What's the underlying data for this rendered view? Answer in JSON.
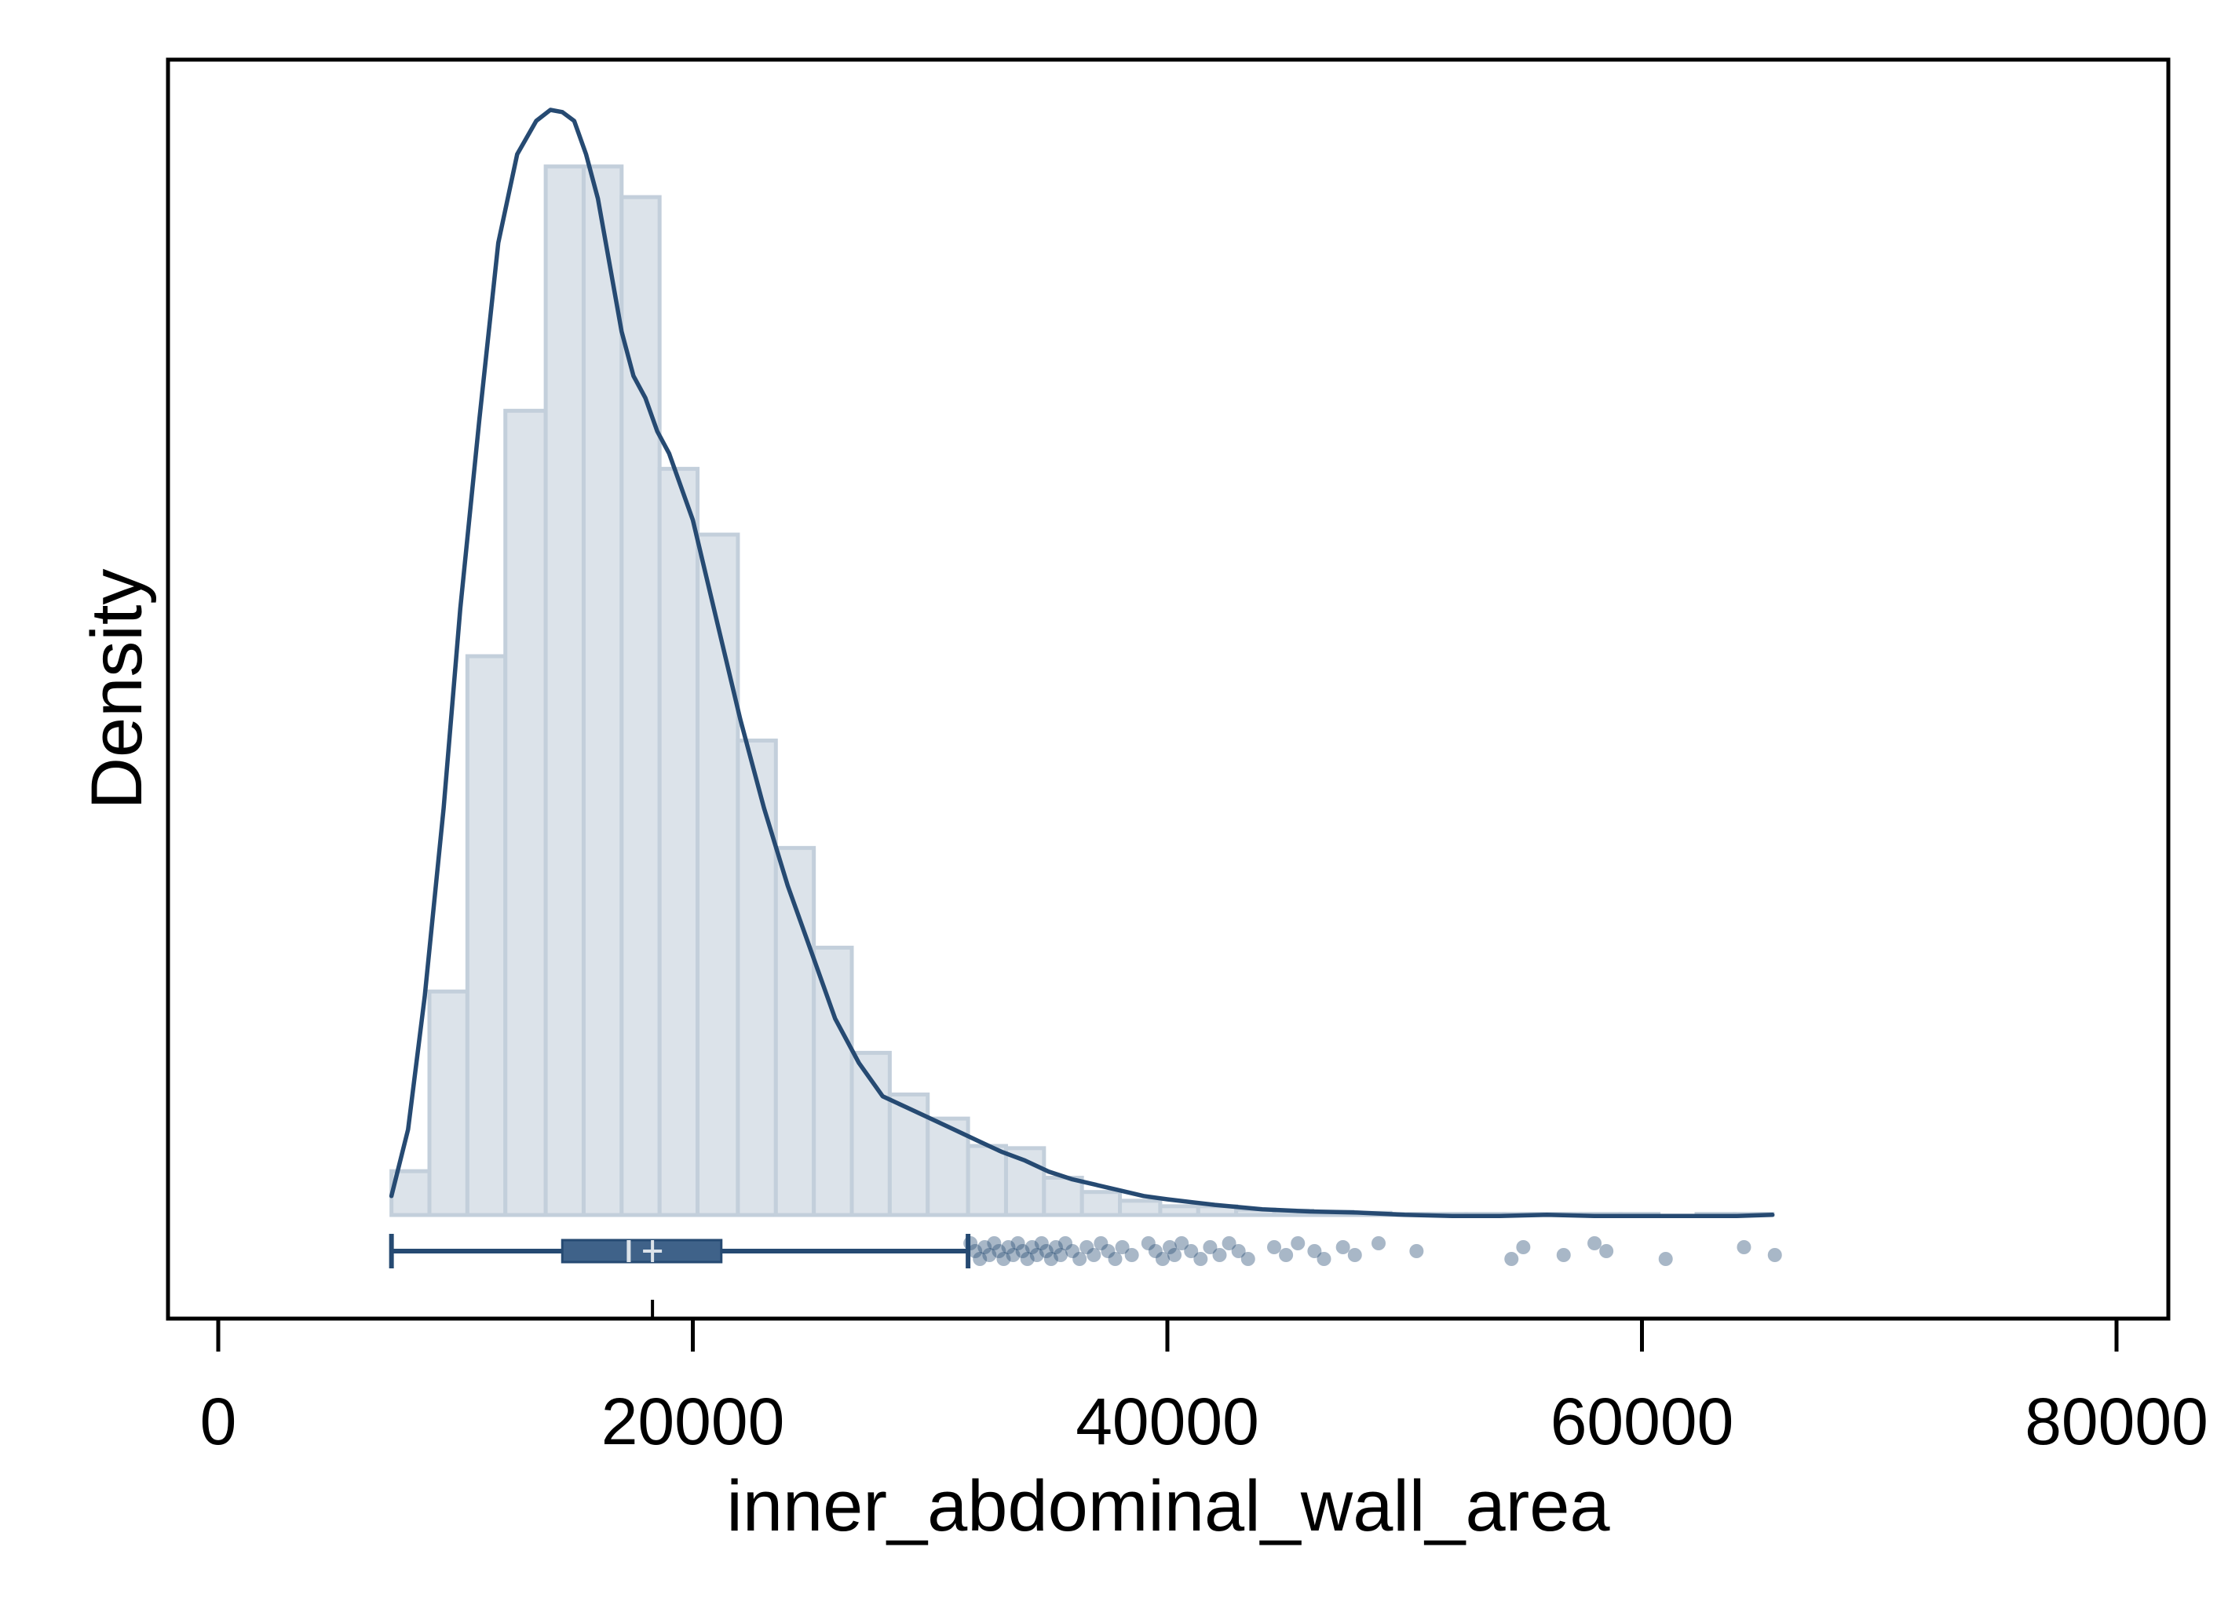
{
  "chart_data": {
    "type": "histogram",
    "xlabel": "inner_abdominal_wall_area",
    "ylabel": "Density",
    "xlim": [
      0,
      80000
    ],
    "xticks": [
      0,
      20000,
      40000,
      60000,
      80000
    ],
    "xtick_labels": [
      "0",
      "20000",
      "40000",
      "60000",
      "80000"
    ],
    "y_ticks_shown": false,
    "grid": false,
    "legend": "none",
    "histogram": {
      "bin_edges": [
        7300,
        8900,
        10500,
        12100,
        13800,
        15400,
        17000,
        18600,
        20200,
        21900,
        23500,
        25100,
        26700,
        28300,
        29900,
        31600,
        33200,
        34800,
        36400,
        38000,
        39700,
        41300,
        42900,
        44500,
        46100,
        47800,
        49400,
        51000,
        52600,
        54200,
        55800,
        57400,
        59100,
        60700,
        62300,
        63900,
        65500
      ],
      "relative_heights": [
        0.04,
        0.204,
        0.51,
        0.734,
        0.957,
        0.957,
        0.929,
        0.681,
        0.621,
        0.433,
        0.335,
        0.244,
        0.148,
        0.11,
        0.088,
        0.063,
        0.061,
        0.034,
        0.021,
        0.013,
        0.008,
        0.008,
        0.005,
        0.004,
        0.003,
        0.002,
        0.001,
        0.001,
        0.001,
        0.001,
        0.001,
        0.001,
        0.001,
        0.0,
        0.001,
        0.001
      ]
    },
    "density_curve": {
      "x": [
        7300,
        8000,
        8700,
        9500,
        10200,
        11000,
        11800,
        12600,
        13400,
        14000,
        14500,
        15000,
        15500,
        16000,
        16500,
        17000,
        17500,
        18000,
        18500,
        19000,
        19500,
        20000,
        21000,
        22000,
        23000,
        24000,
        25000,
        26000,
        27000,
        28000,
        29000,
        30000,
        31000,
        32000,
        33000,
        34000,
        35000,
        36000,
        37000,
        38000,
        39000,
        40000,
        42000,
        44000,
        46000,
        48000,
        50000,
        52000,
        54000,
        56000,
        58000,
        60000,
        62000,
        64000,
        65500
      ],
      "relative_y": [
        0.02,
        0.08,
        0.2,
        0.37,
        0.55,
        0.72,
        0.88,
        0.96,
        0.99,
        1.0,
        0.998,
        0.99,
        0.96,
        0.92,
        0.86,
        0.8,
        0.76,
        0.74,
        0.71,
        0.69,
        0.66,
        0.63,
        0.54,
        0.45,
        0.37,
        0.3,
        0.24,
        0.18,
        0.14,
        0.11,
        0.1,
        0.09,
        0.08,
        0.07,
        0.06,
        0.052,
        0.042,
        0.035,
        0.03,
        0.025,
        0.02,
        0.017,
        0.012,
        0.008,
        0.006,
        0.005,
        0.003,
        0.002,
        0.002,
        0.003,
        0.002,
        0.002,
        0.002,
        0.002,
        0.003
      ]
    },
    "boxplot": {
      "whisker_low": 7300,
      "q1": 14500,
      "median": 17300,
      "mean": 18300,
      "q3": 21200,
      "whisker_high": 31600,
      "outliers": [
        31700,
        31900,
        32100,
        32300,
        32500,
        32700,
        32900,
        33100,
        33300,
        33500,
        33700,
        33900,
        34100,
        34300,
        34500,
        34700,
        34900,
        35100,
        35300,
        35500,
        35700,
        36000,
        36300,
        36600,
        36900,
        37200,
        37500,
        37800,
        38100,
        38500,
        39200,
        39500,
        39800,
        40100,
        40300,
        40600,
        41000,
        41400,
        41800,
        42200,
        42600,
        43000,
        43400,
        44500,
        45000,
        45500,
        46200,
        46600,
        47400,
        47900,
        48900,
        50500,
        54500,
        55000,
        56700,
        58000,
        58500,
        61000,
        64300,
        65600
      ]
    }
  }
}
